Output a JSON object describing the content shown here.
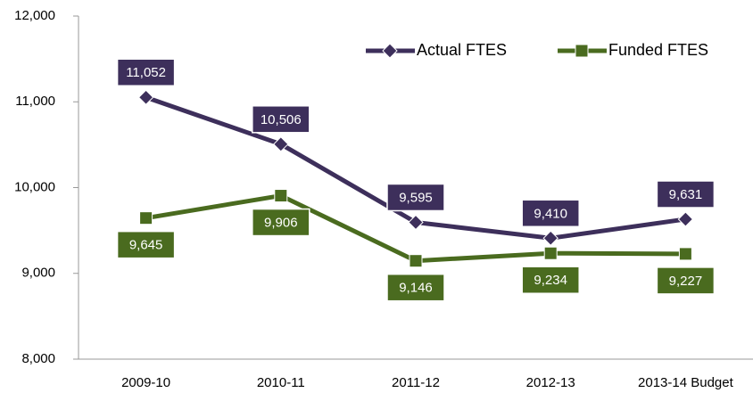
{
  "chart_data": {
    "type": "line",
    "categories": [
      "2009-10",
      "2010-11",
      "2011-12",
      "2012-13",
      "2013-14 Budget"
    ],
    "series": [
      {
        "name": "Actual FTES",
        "color": "#3d2f5b",
        "marker": "diamond",
        "values": [
          11052,
          10506,
          9595,
          9410,
          9631
        ],
        "value_labels": [
          "11,052",
          "10,506",
          "9,595",
          "9,410",
          "9,631"
        ],
        "label_position": "above"
      },
      {
        "name": "Funded FTES",
        "color": "#4a6b1f",
        "marker": "square",
        "values": [
          9645,
          9906,
          9146,
          9234,
          9227
        ],
        "value_labels": [
          "9,645",
          "9,906",
          "9,146",
          "9,234",
          "9,227"
        ],
        "label_position": "below"
      }
    ],
    "ylim": [
      8000,
      12000
    ],
    "yticks": [
      {
        "value": 8000,
        "label": "8,000"
      },
      {
        "value": 9000,
        "label": "9,000"
      },
      {
        "value": 10000,
        "label": "10,000"
      },
      {
        "value": 11000,
        "label": "11,000"
      },
      {
        "value": 12000,
        "label": "12,000"
      }
    ],
    "grid": false,
    "legend": "top-right"
  }
}
